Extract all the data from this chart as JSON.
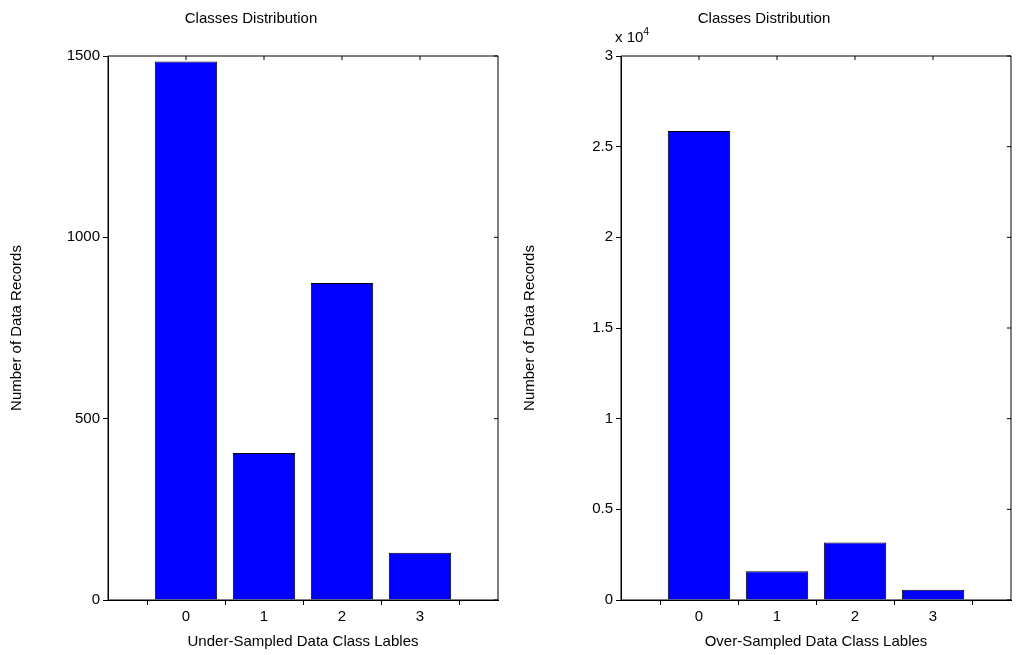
{
  "chart_data": [
    {
      "type": "bar",
      "title": "Classes Distribution",
      "xlabel": "Under-Sampled Data Class Lables",
      "ylabel": "Number of Data Records",
      "x": [
        0,
        1,
        2,
        3
      ],
      "values": [
        1485,
        405,
        874,
        130
      ],
      "color": "#0000ff",
      "xlim": [
        -1,
        4
      ],
      "xticks": [
        0,
        1,
        2,
        3
      ],
      "ylim": [
        0,
        1500
      ],
      "yticks": [
        0,
        500,
        1000,
        1500
      ]
    },
    {
      "type": "bar",
      "title": "Classes Distribution",
      "xlabel": "Over-Sampled Data Class Lables",
      "ylabel": "Number of Data Records",
      "annotations": [
        "x 10$^{4}$"
      ],
      "x": [
        0,
        1,
        2,
        3
      ],
      "values": [
        2.586,
        0.159,
        0.317,
        0.057
      ],
      "color": "#0000ff",
      "xlim": [
        -1,
        4
      ],
      "xticks": [
        0,
        1,
        2,
        3
      ],
      "ylim": [
        0,
        3
      ],
      "yticks": [
        0,
        0.5,
        1,
        1.5,
        2,
        2.5,
        3
      ]
    }
  ]
}
